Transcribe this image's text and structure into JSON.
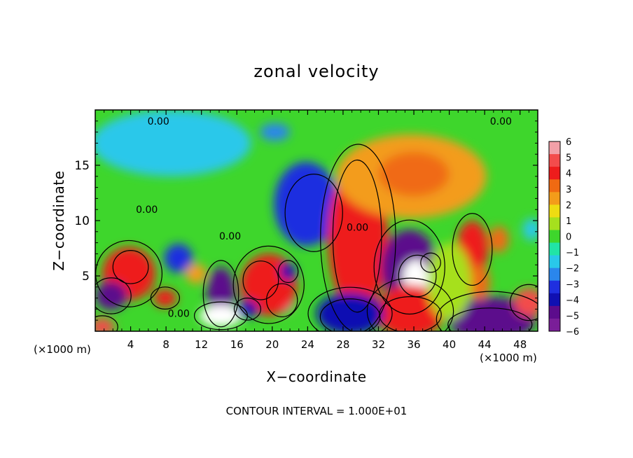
{
  "chart_data": {
    "type": "heatmap",
    "title": "zonal velocity",
    "xlabel": "X−coordinate",
    "ylabel": "Z−coordinate",
    "x_unit_left": "(×1000 m)",
    "x_unit_right": "(×1000 m)",
    "footer": "CONTOUR INTERVAL = 1.000E+01",
    "xlim": [
      0,
      50
    ],
    "ylim": [
      0,
      20
    ],
    "x_ticks": [
      {
        "value": 4,
        "label": "4"
      },
      {
        "value": 8,
        "label": "8"
      },
      {
        "value": 12,
        "label": "12"
      },
      {
        "value": 16,
        "label": "16"
      },
      {
        "value": 20,
        "label": "20"
      },
      {
        "value": 24,
        "label": "24"
      },
      {
        "value": 28,
        "label": "28"
      },
      {
        "value": 32,
        "label": "32"
      },
      {
        "value": 36,
        "label": "36"
      },
      {
        "value": 40,
        "label": "40"
      },
      {
        "value": 44,
        "label": "44"
      },
      {
        "value": 48,
        "label": "48"
      }
    ],
    "y_ticks": [
      {
        "value": 5,
        "label": "5"
      },
      {
        "value": 10,
        "label": "10"
      },
      {
        "value": 15,
        "label": "15"
      }
    ],
    "colorbar": {
      "min": -6,
      "max": 6,
      "labels": [
        "6",
        "5",
        "4",
        "3",
        "2",
        "1",
        "0",
        "−1",
        "−2",
        "−3",
        "−4",
        "−5",
        "−6"
      ],
      "colors": [
        "#f2a0a8",
        "#f34c4c",
        "#ee1c1c",
        "#f06a12",
        "#f39c1a",
        "#eedc12",
        "#a6e01e",
        "#3ed62c",
        "#21e4a6",
        "#29c8ea",
        "#2a86ec",
        "#1f2fe0",
        "#1010b2",
        "#5c0c8c",
        "#7a1e98"
      ]
    },
    "contour_labels": [
      {
        "x": 5.9,
        "y": 19.0,
        "text": "0.00"
      },
      {
        "x": 44.6,
        "y": 19.0,
        "text": "0.00"
      },
      {
        "x": 4.6,
        "y": 11.0,
        "text": "0.00"
      },
      {
        "x": 14.0,
        "y": 8.6,
        "text": "0.00"
      },
      {
        "x": 28.4,
        "y": 9.4,
        "text": "0.00"
      },
      {
        "x": 8.2,
        "y": 1.6,
        "text": "0.00"
      }
    ],
    "features": [
      {
        "x": 24.7,
        "y": 10.7,
        "value": -4.8,
        "rx": 2.6,
        "ry": 2.8
      },
      {
        "x": 23.8,
        "y": 11.5,
        "value": -3.0,
        "rx": 3.6,
        "ry": 3.8
      },
      {
        "x": 29.6,
        "y": 8.6,
        "value": 5.4,
        "rx": 2.2,
        "ry": 5.5
      },
      {
        "x": 29.7,
        "y": 8.4,
        "value": 3.8,
        "rx": 3.4,
        "ry": 6.8
      },
      {
        "x": 35.7,
        "y": 14.0,
        "value": 2.6,
        "rx": 8.5,
        "ry": 3.8
      },
      {
        "x": 36.0,
        "y": 14.2,
        "value": 3.4,
        "rx": 4.0,
        "ry": 2.0
      },
      {
        "x": 35.5,
        "y": 5.8,
        "value": -4.8,
        "rx": 3.2,
        "ry": 3.4
      },
      {
        "x": 36.4,
        "y": 5.0,
        "value": -6.5,
        "rx": 1.7,
        "ry": 1.5
      },
      {
        "x": 37.9,
        "y": 6.2,
        "value": -5.6,
        "rx": 0.9,
        "ry": 0.7
      },
      {
        "x": 35.6,
        "y": 1.5,
        "value": 5.8,
        "rx": 2.8,
        "ry": 1.3
      },
      {
        "x": 35.6,
        "y": 1.8,
        "value": 4.2,
        "rx": 3.9,
        "ry": 2.4
      },
      {
        "x": 28.8,
        "y": 1.3,
        "value": -6.0,
        "rx": 2.7,
        "ry": 1.3
      },
      {
        "x": 28.8,
        "y": 1.6,
        "value": -4.2,
        "rx": 3.8,
        "ry": 1.9
      },
      {
        "x": 44.6,
        "y": 0.6,
        "value": -6.4,
        "rx": 3.8,
        "ry": 1.2
      },
      {
        "x": 44.8,
        "y": 1.1,
        "value": -4.4,
        "rx": 5.0,
        "ry": 2.0
      },
      {
        "x": 4.0,
        "y": 5.8,
        "value": 5.6,
        "rx": 1.6,
        "ry": 1.2
      },
      {
        "x": 3.8,
        "y": 5.2,
        "value": 3.9,
        "rx": 3.0,
        "ry": 2.4
      },
      {
        "x": 7.9,
        "y": 3.0,
        "value": 4.3,
        "rx": 1.3,
        "ry": 0.8
      },
      {
        "x": 1.8,
        "y": 3.2,
        "value": -4.4,
        "rx": 1.8,
        "ry": 1.3
      },
      {
        "x": 14.2,
        "y": 3.4,
        "value": -4.8,
        "rx": 1.6,
        "ry": 2.4
      },
      {
        "x": 14.2,
        "y": 1.4,
        "value": -6.2,
        "rx": 2.4,
        "ry": 1.0
      },
      {
        "x": 18.7,
        "y": 4.6,
        "value": 5.8,
        "rx": 1.6,
        "ry": 1.4
      },
      {
        "x": 21.1,
        "y": 2.8,
        "value": 5.3,
        "rx": 1.4,
        "ry": 1.2
      },
      {
        "x": 19.6,
        "y": 4.2,
        "value": 3.6,
        "rx": 3.2,
        "ry": 2.8
      },
      {
        "x": 17.2,
        "y": 2.0,
        "value": -4.2,
        "rx": 1.2,
        "ry": 0.8
      },
      {
        "x": 21.8,
        "y": 5.4,
        "value": -4.2,
        "rx": 0.9,
        "ry": 0.8
      },
      {
        "x": 0.8,
        "y": 0.4,
        "value": 4.9,
        "rx": 1.4,
        "ry": 0.8
      },
      {
        "x": 49.0,
        "y": 2.6,
        "value": 4.4,
        "rx": 1.7,
        "ry": 1.3
      },
      {
        "x": 42.6,
        "y": 7.4,
        "value": 4.0,
        "rx": 1.8,
        "ry": 2.6
      },
      {
        "x": 43.4,
        "y": 4.4,
        "value": 3.4,
        "rx": 1.2,
        "ry": 1.6
      },
      {
        "x": 45.6,
        "y": 8.3,
        "value": 3.2,
        "rx": 1.1,
        "ry": 1.2
      },
      {
        "x": 9.4,
        "y": 6.6,
        "value": -3.4,
        "rx": 1.6,
        "ry": 1.3
      },
      {
        "x": 11.4,
        "y": 5.2,
        "value": 2.8,
        "rx": 1.2,
        "ry": 0.9
      },
      {
        "x": 8.6,
        "y": 17.0,
        "value": -1.6,
        "rx": 9.0,
        "ry": 3.0
      },
      {
        "x": 20.3,
        "y": 18.0,
        "value": -2.2,
        "rx": 1.7,
        "ry": 0.8
      },
      {
        "x": 40.0,
        "y": 4.5,
        "value": 0.8,
        "rx": 2.5,
        "ry": 3.5
      },
      {
        "x": 49.3,
        "y": 9.2,
        "value": -1.6,
        "rx": 1.0,
        "ry": 1.0
      }
    ]
  }
}
